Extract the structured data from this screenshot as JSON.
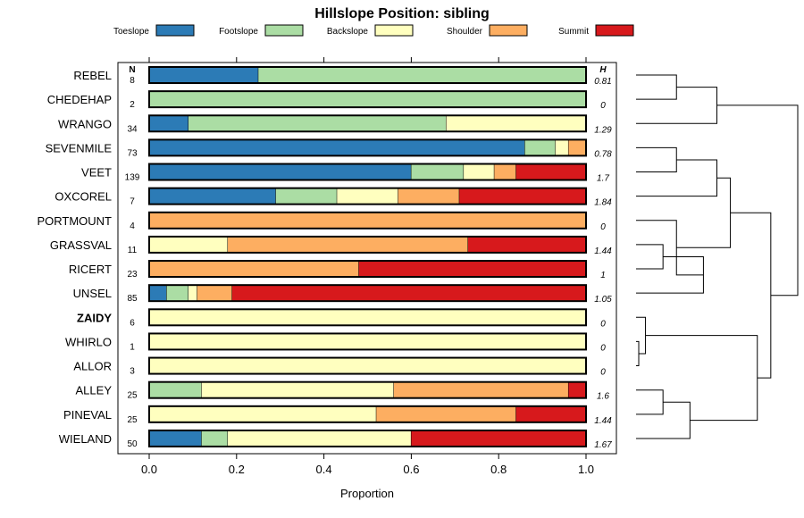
{
  "chart_data": {
    "type": "bar",
    "orientation": "horizontal",
    "stacked": true,
    "title": "Hillslope Position: sibling",
    "xlabel": "Proportion",
    "xlim": [
      0,
      1
    ],
    "xticks": [
      "0.0",
      "0.2",
      "0.4",
      "0.6",
      "0.8",
      "1.0"
    ],
    "n_header": "N",
    "h_header": "H",
    "legend": [
      {
        "name": "Toeslope",
        "color": "#2c7bb6"
      },
      {
        "name": "Footslope",
        "color": "#abdda4"
      },
      {
        "name": "Backslope",
        "color": "#ffffbf"
      },
      {
        "name": "Shoulder",
        "color": "#fdae61"
      },
      {
        "name": "Summit",
        "color": "#d7191c"
      }
    ],
    "rows": [
      {
        "label": "REBEL",
        "n": "8",
        "h": "0.81",
        "bold": false,
        "values": [
          0.25,
          0.75,
          0,
          0,
          0
        ]
      },
      {
        "label": "CHEDEHAP",
        "n": "2",
        "h": "0",
        "bold": false,
        "values": [
          0,
          1,
          0,
          0,
          0
        ]
      },
      {
        "label": "WRANGO",
        "n": "34",
        "h": "1.29",
        "bold": false,
        "values": [
          0.09,
          0.59,
          0.32,
          0,
          0
        ]
      },
      {
        "label": "SEVENMILE",
        "n": "73",
        "h": "0.78",
        "bold": false,
        "values": [
          0.86,
          0.07,
          0.03,
          0.04,
          0
        ]
      },
      {
        "label": "VEET",
        "n": "139",
        "h": "1.7",
        "bold": false,
        "values": [
          0.6,
          0.12,
          0.07,
          0.05,
          0.16
        ]
      },
      {
        "label": "OXCOREL",
        "n": "7",
        "h": "1.84",
        "bold": false,
        "values": [
          0.29,
          0.14,
          0.14,
          0.14,
          0.29
        ]
      },
      {
        "label": "PORTMOUNT",
        "n": "4",
        "h": "0",
        "bold": false,
        "values": [
          0,
          0,
          0,
          1,
          0
        ]
      },
      {
        "label": "GRASSVAL",
        "n": "11",
        "h": "1.44",
        "bold": false,
        "values": [
          0,
          0,
          0.18,
          0.55,
          0.27
        ]
      },
      {
        "label": "RICERT",
        "n": "23",
        "h": "1",
        "bold": false,
        "values": [
          0,
          0,
          0,
          0.48,
          0.52
        ]
      },
      {
        "label": "UNSEL",
        "n": "85",
        "h": "1.05",
        "bold": false,
        "values": [
          0.04,
          0.05,
          0.02,
          0.08,
          0.81
        ]
      },
      {
        "label": "ZAIDY",
        "n": "6",
        "h": "0",
        "bold": true,
        "values": [
          0,
          0,
          1,
          0,
          0
        ]
      },
      {
        "label": "WHIRLO",
        "n": "1",
        "h": "0",
        "bold": false,
        "values": [
          0,
          0,
          1,
          0,
          0
        ]
      },
      {
        "label": "ALLOR",
        "n": "3",
        "h": "0",
        "bold": false,
        "values": [
          0,
          0,
          1,
          0,
          0
        ]
      },
      {
        "label": "ALLEY",
        "n": "25",
        "h": "1.6",
        "bold": false,
        "values": [
          0,
          0.12,
          0.44,
          0.4,
          0.04
        ]
      },
      {
        "label": "PINEVAL",
        "n": "25",
        "h": "1.44",
        "bold": false,
        "values": [
          0,
          0,
          0.52,
          0.32,
          0.16
        ]
      },
      {
        "label": "WIELAND",
        "n": "50",
        "h": "1.67",
        "bold": false,
        "values": [
          0.12,
          0.06,
          0.42,
          0,
          0.4
        ]
      }
    ],
    "dendrogram": {
      "type": "hierarchical-clustering",
      "merges": [
        [
          0,
          1,
          0.3
        ],
        [
          2,
          16,
          0.6
        ],
        [
          3,
          4,
          0.3
        ],
        [
          18,
          5,
          0.6
        ],
        [
          7,
          8,
          0.2
        ],
        [
          20,
          9,
          0.5
        ],
        [
          21,
          6,
          0.3
        ],
        [
          19,
          22,
          0.7
        ],
        [
          11,
          12,
          0.02
        ],
        [
          24,
          10,
          0.07
        ],
        [
          13,
          14,
          0.2
        ],
        [
          26,
          15,
          0.4
        ],
        [
          25,
          27,
          0.9
        ],
        [
          23,
          28,
          1.0
        ],
        [
          17,
          29,
          1.2
        ]
      ]
    }
  }
}
